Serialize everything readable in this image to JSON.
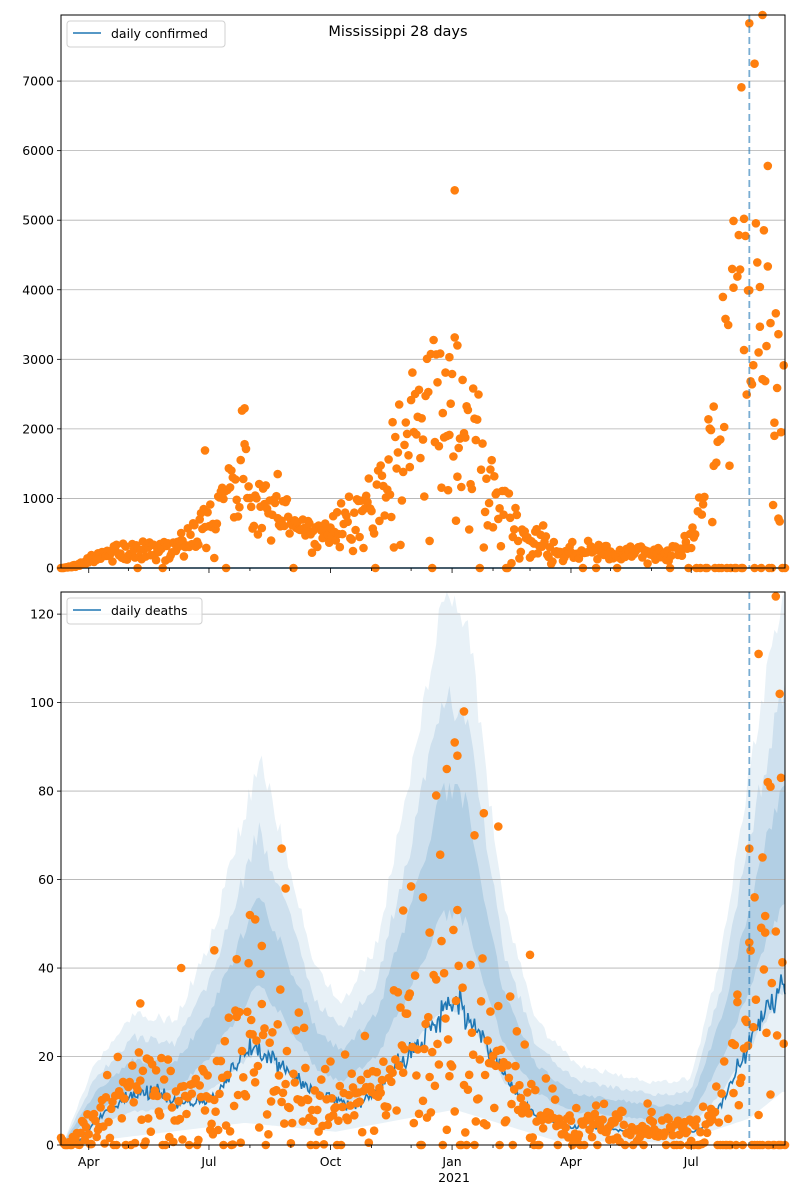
{
  "figure": {
    "title": "Mississippi 28 days",
    "x_year_label": "2021",
    "x_month_labels": [
      "Apr",
      "Jul",
      "Oct",
      "Jan",
      "Apr",
      "Jul"
    ]
  },
  "colors": {
    "line": "#1f77b4",
    "points": "#ff7f0e",
    "band": "#1f77b4",
    "grid": "#b0b0b0",
    "vline": "#1f77b4"
  },
  "chart_data": [
    {
      "type": "scatter",
      "panel": "top",
      "legend": [
        "daily confirmed"
      ],
      "legend_location": "upper-left",
      "ylim": [
        0,
        7950
      ],
      "yticks": [
        0,
        1000,
        2000,
        3000,
        4000,
        5000,
        6000,
        7000
      ],
      "x_range": [
        "2020-03-11",
        "2021-09-10"
      ],
      "vline_date": "2021-08-14",
      "grid_y": true,
      "series": [
        {
          "name": "daily confirmed",
          "kind": "line",
          "values_note": "flat model line near zero"
        },
        {
          "kind": "points",
          "anchors": [
            [
              "2020-03-12",
              0
            ],
            [
              "2020-03-25",
              40
            ],
            [
              "2020-04-05",
              150
            ],
            [
              "2020-04-20",
              230
            ],
            [
              "2020-05-05",
              260
            ],
            [
              "2020-05-20",
              290
            ],
            [
              "2020-06-05",
              300
            ],
            [
              "2020-06-20",
              450
            ],
            [
              "2020-07-01",
              700
            ],
            [
              "2020-07-10",
              950
            ],
            [
              "2020-07-20",
              1150
            ],
            [
              "2020-07-28",
              1300
            ],
            [
              "2020-08-05",
              1050
            ],
            [
              "2020-08-15",
              800
            ],
            [
              "2020-08-25",
              700
            ],
            [
              "2020-09-05",
              550
            ],
            [
              "2020-09-20",
              480
            ],
            [
              "2020-10-05",
              600
            ],
            [
              "2020-10-20",
              760
            ],
            [
              "2020-11-05",
              930
            ],
            [
              "2020-11-15",
              1300
            ],
            [
              "2020-11-25",
              1650
            ],
            [
              "2020-12-05",
              2050
            ],
            [
              "2020-12-15",
              2250
            ],
            [
              "2020-12-28",
              2150
            ],
            [
              "2021-01-08",
              2050
            ],
            [
              "2021-01-18",
              1750
            ],
            [
              "2021-01-28",
              1300
            ],
            [
              "2021-02-08",
              850
            ],
            [
              "2021-02-20",
              550
            ],
            [
              "2021-03-05",
              380
            ],
            [
              "2021-03-20",
              260
            ],
            [
              "2021-04-05",
              210
            ],
            [
              "2021-04-20",
              230
            ],
            [
              "2021-05-05",
              230
            ],
            [
              "2021-05-20",
              210
            ],
            [
              "2021-06-05",
              190
            ],
            [
              "2021-06-20",
              230
            ],
            [
              "2021-07-01",
              400
            ],
            [
              "2021-07-10",
              900
            ],
            [
              "2021-07-20",
              2000
            ],
            [
              "2021-07-30",
              3300
            ],
            [
              "2021-08-08",
              4200
            ],
            [
              "2021-08-18",
              3800
            ],
            [
              "2021-08-28",
              3000
            ],
            [
              "2021-09-08",
              2300
            ]
          ],
          "outliers": [
            [
              "2020-06-28",
              1690
            ],
            [
              "2020-07-28",
              1780
            ],
            [
              "2020-08-22",
              1350
            ],
            [
              "2020-12-30",
              3030
            ],
            [
              "2021-01-03",
              5430
            ],
            [
              "2021-01-05",
              3200
            ],
            [
              "2021-07-18",
              2320
            ],
            [
              "2021-08-02",
              4990
            ],
            [
              "2021-08-08",
              6910
            ],
            [
              "2021-08-10",
              5020
            ],
            [
              "2021-08-14",
              7830
            ],
            [
              "2021-08-18",
              7250
            ],
            [
              "2021-08-22",
              4040
            ],
            [
              "2021-08-24",
              7950
            ],
            [
              "2021-08-28",
              5780
            ],
            [
              "2021-09-02",
              1900
            ],
            [
              "2021-09-05",
              710
            ]
          ]
        }
      ]
    },
    {
      "type": "scatter",
      "panel": "bottom",
      "legend": [
        "daily deaths"
      ],
      "legend_location": "upper-left",
      "ylim": [
        0,
        125
      ],
      "yticks": [
        0,
        20,
        40,
        60,
        80,
        100,
        120
      ],
      "x_range": [
        "2020-03-11",
        "2021-09-10"
      ],
      "vline_date": "2021-08-14",
      "grid_y": true,
      "series": [
        {
          "name": "daily deaths",
          "kind": "line",
          "anchors": [
            [
              "2020-03-12",
              0
            ],
            [
              "2020-03-25",
              1
            ],
            [
              "2020-04-05",
              5
            ],
            [
              "2020-04-20",
              9
            ],
            [
              "2020-05-05",
              11
            ],
            [
              "2020-05-20",
              12
            ],
            [
              "2020-06-05",
              10
            ],
            [
              "2020-06-20",
              9
            ],
            [
              "2020-07-01",
              10
            ],
            [
              "2020-07-15",
              15
            ],
            [
              "2020-07-28",
              21
            ],
            [
              "2020-08-08",
              22
            ],
            [
              "2020-08-20",
              19
            ],
            [
              "2020-09-05",
              15
            ],
            [
              "2020-09-20",
              12
            ],
            [
              "2020-10-05",
              10
            ],
            [
              "2020-10-20",
              9
            ],
            [
              "2020-11-05",
              12
            ],
            [
              "2020-11-20",
              18
            ],
            [
              "2020-12-05",
              22
            ],
            [
              "2020-12-20",
              28
            ],
            [
              "2021-01-03",
              33
            ],
            [
              "2021-01-12",
              30
            ],
            [
              "2021-01-25",
              23
            ],
            [
              "2021-02-08",
              17
            ],
            [
              "2021-02-20",
              11
            ],
            [
              "2021-03-05",
              7
            ],
            [
              "2021-03-20",
              5
            ],
            [
              "2021-04-05",
              4
            ],
            [
              "2021-04-20",
              4
            ],
            [
              "2021-05-05",
              3.5
            ],
            [
              "2021-05-20",
              3
            ],
            [
              "2021-06-05",
              3
            ],
            [
              "2021-06-20",
              2.5
            ],
            [
              "2021-07-01",
              3
            ],
            [
              "2021-07-15",
              5
            ],
            [
              "2021-07-25",
              10
            ],
            [
              "2021-08-05",
              17
            ],
            [
              "2021-08-14",
              23
            ],
            [
              "2021-08-24",
              29
            ],
            [
              "2021-09-02",
              33
            ],
            [
              "2021-09-08",
              37
            ]
          ]
        },
        {
          "kind": "interval_bands",
          "upper_anchors": [
            [
              "2020-03-12",
              0
            ],
            [
              "2020-04-05",
              18
            ],
            [
              "2020-05-05",
              30
            ],
            [
              "2020-06-05",
              28
            ],
            [
              "2020-07-01",
              45
            ],
            [
              "2020-07-28",
              75
            ],
            [
              "2020-08-08",
              88
            ],
            [
              "2020-08-25",
              70
            ],
            [
              "2020-09-20",
              40
            ],
            [
              "2020-10-10",
              32
            ],
            [
              "2020-11-05",
              45
            ],
            [
              "2020-12-05",
              90
            ],
            [
              "2020-12-25",
              125
            ],
            [
              "2021-01-12",
              120
            ],
            [
              "2021-02-08",
              55
            ],
            [
              "2021-03-05",
              28
            ],
            [
              "2021-04-05",
              18
            ],
            [
              "2021-05-05",
              16
            ],
            [
              "2021-06-05",
              14
            ],
            [
              "2021-07-01",
              15
            ],
            [
              "2021-07-25",
              45
            ],
            [
              "2021-08-14",
              85
            ],
            [
              "2021-09-08",
              125
            ]
          ],
          "lower_anchors": [
            [
              "2020-03-12",
              0
            ],
            [
              "2020-05-05",
              2
            ],
            [
              "2020-07-28",
              5
            ],
            [
              "2020-10-05",
              3
            ],
            [
              "2021-01-03",
              8
            ],
            [
              "2021-03-20",
              1
            ],
            [
              "2021-06-20",
              0.5
            ],
            [
              "2021-08-14",
              6
            ],
            [
              "2021-09-08",
              12
            ]
          ]
        },
        {
          "kind": "points",
          "outliers": [
            [
              "2020-05-10",
              32
            ],
            [
              "2020-06-10",
              40
            ],
            [
              "2020-07-05",
              44
            ],
            [
              "2020-07-22",
              42
            ],
            [
              "2020-08-01",
              52
            ],
            [
              "2020-08-05",
              51
            ],
            [
              "2020-08-10",
              45
            ],
            [
              "2020-08-25",
              67
            ],
            [
              "2020-08-28",
              58
            ],
            [
              "2020-11-25",
              53
            ],
            [
              "2020-12-10",
              56
            ],
            [
              "2020-12-15",
              48
            ],
            [
              "2020-12-20",
              79
            ],
            [
              "2020-12-28",
              85
            ],
            [
              "2021-01-03",
              91
            ],
            [
              "2021-01-05",
              88
            ],
            [
              "2021-01-10",
              98
            ],
            [
              "2021-01-18",
              70
            ],
            [
              "2021-01-25",
              75
            ],
            [
              "2021-02-05",
              72
            ],
            [
              "2021-03-01",
              43
            ],
            [
              "2021-08-05",
              34
            ],
            [
              "2021-08-14",
              67
            ],
            [
              "2021-08-18",
              56
            ],
            [
              "2021-08-21",
              111
            ],
            [
              "2021-08-24",
              65
            ],
            [
              "2021-08-26",
              48
            ],
            [
              "2021-08-28",
              82
            ],
            [
              "2021-08-30",
              81
            ],
            [
              "2021-09-03",
              124
            ],
            [
              "2021-09-06",
              102
            ],
            [
              "2021-09-07",
              83
            ]
          ]
        }
      ]
    }
  ]
}
